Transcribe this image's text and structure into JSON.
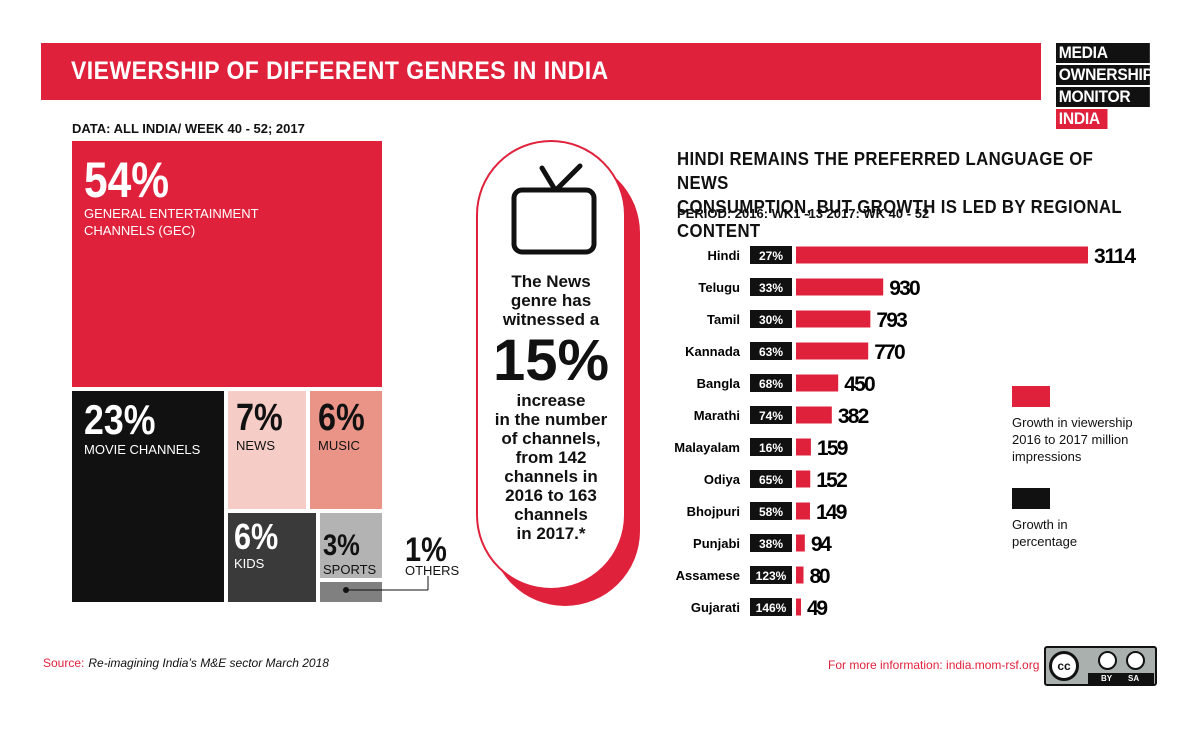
{
  "title": "VIEWERSHIP OF DIFFERENT GENRES IN INDIA",
  "logo": {
    "line1": "MEDIA",
    "line2": "OWNERSHIP",
    "line3": "MONITOR",
    "line4": "INDIA"
  },
  "data_note": "DATA: ALL INDIA/ WEEK 40 - 52; 2017",
  "treemap": {
    "gec": {
      "pct": "54%",
      "label_line1": "GENERAL ENTERTAINMENT",
      "label_line2": "CHANNELS (GEC)"
    },
    "movie": {
      "pct": "23%",
      "label": "MOVIE CHANNELS"
    },
    "news": {
      "pct": "7%",
      "label": "NEWS"
    },
    "music": {
      "pct": "6%",
      "label": "MUSIC"
    },
    "kids": {
      "pct": "6%",
      "label": "KIDS"
    },
    "sports": {
      "pct": "3%",
      "label": "SPORTS"
    },
    "others": {
      "pct": "1%",
      "label": "OTHERS"
    }
  },
  "callout": {
    "lines_top": [
      "The News",
      "genre has",
      "witnessed a"
    ],
    "big": "15%",
    "lines_bottom": [
      "increase",
      "in the number",
      "of channels,",
      "from 142",
      "channels in",
      "2016 to 163",
      "channels",
      "in 2017.*"
    ]
  },
  "bar_section": {
    "title_line1": "HINDI REMAINS THE PREFERRED LANGUAGE OF NEWS",
    "title_line2": "CONSUMPTION, BUT GROWTH IS LED BY REGIONAL CONTENT",
    "period": "PERIOD: 2016: WK1 -13  2017: WK 40 - 52"
  },
  "legend": {
    "red_line1": "Growth in viewership",
    "red_line2": "2016 to 2017 million",
    "red_line3": "impressions",
    "black_line1": "Growth in",
    "black_line2": "percentage"
  },
  "colors": {
    "red": "#e0213c",
    "black": "#111111",
    "news": "#f5cdc6",
    "music": "#ea9488",
    "kids": "#3a3a3a",
    "sports": "#b3b3b3",
    "others": "#808080"
  },
  "chart_data": [
    {
      "type": "treemap",
      "title": "VIEWERSHIP OF DIFFERENT GENRES IN INDIA",
      "categories": [
        "GENERAL ENTERTAINMENT CHANNELS (GEC)",
        "MOVIE CHANNELS",
        "NEWS",
        "MUSIC",
        "KIDS",
        "SPORTS",
        "OTHERS"
      ],
      "values": [
        54,
        23,
        7,
        6,
        6,
        3,
        1
      ],
      "unit": "%"
    },
    {
      "type": "bar",
      "orientation": "horizontal",
      "title": "HINDI REMAINS THE PREFERRED LANGUAGE OF NEWS CONSUMPTION, BUT GROWTH IS LED BY REGIONAL CONTENT",
      "categories": [
        "Hindi",
        "Telugu",
        "Tamil",
        "Kannada",
        "Bangla",
        "Marathi",
        "Malayalam",
        "Odiya",
        "Bhojpuri",
        "Punjabi",
        "Assamese",
        "Gujarati"
      ],
      "series": [
        {
          "name": "Growth in viewership 2016 to 2017 million impressions",
          "values": [
            3114,
            930,
            793,
            770,
            450,
            382,
            159,
            152,
            149,
            94,
            80,
            49
          ]
        },
        {
          "name": "Growth in percentage",
          "values": [
            "27%",
            "33%",
            "30%",
            "63%",
            "68%",
            "74%",
            "16%",
            "65%",
            "58%",
            "38%",
            "123%",
            "146%"
          ]
        }
      ],
      "value_labels": [
        "3114",
        "930",
        "793",
        "770",
        "450",
        "382",
        "159",
        "152",
        "149",
        "94",
        "80",
        "49"
      ],
      "xlim": [
        0,
        3114
      ],
      "grid": false,
      "legend_position": "right"
    }
  ],
  "footer": {
    "source_label": "Source:",
    "source_text": "Re-imagining India’s M&E sector March 2018",
    "more_info": "For more information: india.mom-rsf.org",
    "cc": {
      "main": "cc",
      "by": "BY",
      "sa": "SA"
    }
  }
}
